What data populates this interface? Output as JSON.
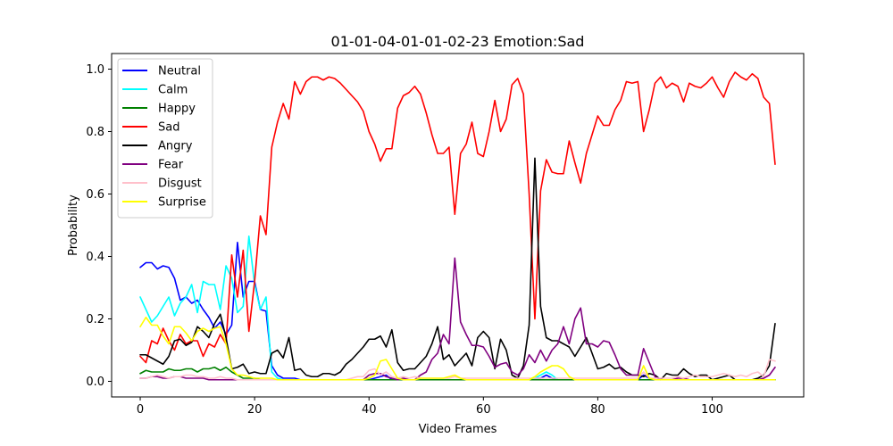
{
  "chart_data": {
    "type": "line",
    "title": "01-01-04-01-01-02-23 Emotion:Sad",
    "xlabel": "Video Frames",
    "ylabel": "Probability",
    "xlim": [
      -5,
      116
    ],
    "ylim": [
      -0.05,
      1.05
    ],
    "xticks": [
      0,
      20,
      40,
      60,
      80,
      100
    ],
    "yticks": [
      0.0,
      0.2,
      0.4,
      0.6,
      0.8,
      1.0
    ],
    "yticklabels": [
      "0.0",
      "0.2",
      "0.4",
      "0.6",
      "0.8",
      "1.0"
    ],
    "grid": false,
    "legend_position": "upper-left",
    "series": [
      {
        "name": "Neutral",
        "color": "#0000ff",
        "values": [
          0.365,
          0.38,
          0.38,
          0.36,
          0.37,
          0.365,
          0.33,
          0.26,
          0.27,
          0.25,
          0.26,
          0.23,
          0.205,
          0.17,
          0.19,
          0.15,
          0.18,
          0.445,
          0.27,
          0.32,
          0.32,
          0.23,
          0.225,
          0.05,
          0.02,
          0.01,
          0.01,
          0.01,
          0.005,
          0.005,
          0.005,
          0.005,
          0.005,
          0.005,
          0.005,
          0.005,
          0.005,
          0.005,
          0.005,
          0.005,
          0.005,
          0.01,
          0.015,
          0.02,
          0.005,
          0.005,
          0.005,
          0.005,
          0.005,
          0.005,
          0.005,
          0.005,
          0.005,
          0.005,
          0.005,
          0.005,
          0.005,
          0.005,
          0.005,
          0.005,
          0.005,
          0.005,
          0.005,
          0.005,
          0.005,
          0.005,
          0.005,
          0.005,
          0.005,
          0.01,
          0.01,
          0.02,
          0.01,
          0.005,
          0.005,
          0.005,
          0.005,
          0.005,
          0.005,
          0.005,
          0.005,
          0.005,
          0.005,
          0.005,
          0.005,
          0.005,
          0.005,
          0.005,
          0.02,
          0.01,
          0.005,
          0.005,
          0.005,
          0.005,
          0.005,
          0.005,
          0.005,
          0.005,
          0.005,
          0.005,
          0.005,
          0.005,
          0.005,
          0.005,
          0.005,
          0.005,
          0.005,
          0.005,
          0.005,
          0.005,
          0.005,
          0.005
        ]
      },
      {
        "name": "Calm",
        "color": "#00ffff",
        "values": [
          0.27,
          0.23,
          0.19,
          0.21,
          0.24,
          0.27,
          0.21,
          0.25,
          0.27,
          0.31,
          0.22,
          0.32,
          0.31,
          0.31,
          0.23,
          0.37,
          0.33,
          0.22,
          0.24,
          0.465,
          0.31,
          0.23,
          0.27,
          0.03,
          0.01,
          0.005,
          0.005,
          0.005,
          0.005,
          0.005,
          0.005,
          0.005,
          0.005,
          0.005,
          0.005,
          0.005,
          0.005,
          0.005,
          0.005,
          0.005,
          0.005,
          0.005,
          0.005,
          0.005,
          0.005,
          0.005,
          0.005,
          0.005,
          0.005,
          0.005,
          0.005,
          0.005,
          0.005,
          0.005,
          0.005,
          0.005,
          0.005,
          0.005,
          0.005,
          0.005,
          0.005,
          0.005,
          0.005,
          0.005,
          0.005,
          0.005,
          0.005,
          0.005,
          0.005,
          0.01,
          0.02,
          0.03,
          0.02,
          0.005,
          0.005,
          0.005,
          0.005,
          0.005,
          0.005,
          0.005,
          0.005,
          0.005,
          0.005,
          0.005,
          0.005,
          0.005,
          0.005,
          0.005,
          0.005,
          0.005,
          0.005,
          0.005,
          0.005,
          0.005,
          0.005,
          0.005,
          0.005,
          0.005,
          0.005,
          0.005,
          0.005,
          0.005,
          0.005,
          0.005,
          0.005,
          0.005,
          0.005,
          0.005,
          0.005,
          0.005,
          0.005,
          0.005
        ]
      },
      {
        "name": "Happy",
        "color": "#008000",
        "values": [
          0.025,
          0.035,
          0.03,
          0.03,
          0.03,
          0.04,
          0.035,
          0.035,
          0.04,
          0.04,
          0.03,
          0.04,
          0.04,
          0.045,
          0.035,
          0.045,
          0.03,
          0.02,
          0.01,
          0.01,
          0.01,
          0.005,
          0.005,
          0.005,
          0.005,
          0.005,
          0.005,
          0.005,
          0.005,
          0.005,
          0.005,
          0.005,
          0.005,
          0.005,
          0.005,
          0.005,
          0.005,
          0.005,
          0.005,
          0.005,
          0.005,
          0.005,
          0.005,
          0.005,
          0.005,
          0.005,
          0.005,
          0.005,
          0.005,
          0.005,
          0.005,
          0.005,
          0.005,
          0.005,
          0.005,
          0.005,
          0.005,
          0.005,
          0.005,
          0.005,
          0.005,
          0.005,
          0.005,
          0.005,
          0.005,
          0.005,
          0.005,
          0.005,
          0.005,
          0.005,
          0.005,
          0.005,
          0.005,
          0.005,
          0.005,
          0.005,
          0.005,
          0.005,
          0.005,
          0.005,
          0.005,
          0.005,
          0.005,
          0.005,
          0.005,
          0.005,
          0.005,
          0.005,
          0.005,
          0.005,
          0.005,
          0.005,
          0.005,
          0.005,
          0.005,
          0.005,
          0.005,
          0.005,
          0.005,
          0.005,
          0.005,
          0.005,
          0.005,
          0.005,
          0.005,
          0.005,
          0.005,
          0.005,
          0.005,
          0.005,
          0.005,
          0.005
        ]
      },
      {
        "name": "Sad",
        "color": "#ff0000",
        "values": [
          0.08,
          0.06,
          0.13,
          0.12,
          0.17,
          0.13,
          0.1,
          0.15,
          0.12,
          0.13,
          0.13,
          0.08,
          0.12,
          0.11,
          0.15,
          0.12,
          0.405,
          0.27,
          0.42,
          0.16,
          0.32,
          0.53,
          0.47,
          0.75,
          0.83,
          0.89,
          0.84,
          0.96,
          0.92,
          0.96,
          0.975,
          0.975,
          0.965,
          0.975,
          0.97,
          0.955,
          0.935,
          0.915,
          0.895,
          0.865,
          0.8,
          0.76,
          0.705,
          0.745,
          0.745,
          0.875,
          0.915,
          0.925,
          0.945,
          0.92,
          0.86,
          0.79,
          0.73,
          0.73,
          0.75,
          0.535,
          0.73,
          0.76,
          0.83,
          0.73,
          0.72,
          0.8,
          0.9,
          0.8,
          0.84,
          0.95,
          0.97,
          0.92,
          0.6,
          0.2,
          0.61,
          0.71,
          0.67,
          0.665,
          0.665,
          0.77,
          0.7,
          0.635,
          0.73,
          0.79,
          0.85,
          0.82,
          0.82,
          0.87,
          0.9,
          0.96,
          0.955,
          0.96,
          0.8,
          0.87,
          0.955,
          0.975,
          0.94,
          0.955,
          0.945,
          0.895,
          0.955,
          0.945,
          0.94,
          0.955,
          0.975,
          0.94,
          0.91,
          0.96,
          0.99,
          0.975,
          0.965,
          0.985,
          0.97,
          0.91,
          0.89,
          0.695
        ]
      },
      {
        "name": "Angry",
        "color": "#000000",
        "values": [
          0.085,
          0.085,
          0.075,
          0.065,
          0.055,
          0.08,
          0.13,
          0.135,
          0.115,
          0.125,
          0.175,
          0.16,
          0.14,
          0.185,
          0.215,
          0.14,
          0.04,
          0.045,
          0.055,
          0.025,
          0.03,
          0.025,
          0.025,
          0.09,
          0.1,
          0.075,
          0.14,
          0.035,
          0.04,
          0.02,
          0.015,
          0.015,
          0.025,
          0.025,
          0.02,
          0.03,
          0.055,
          0.07,
          0.09,
          0.11,
          0.135,
          0.135,
          0.145,
          0.11,
          0.165,
          0.06,
          0.035,
          0.04,
          0.04,
          0.06,
          0.08,
          0.12,
          0.175,
          0.07,
          0.085,
          0.05,
          0.07,
          0.09,
          0.05,
          0.14,
          0.16,
          0.14,
          0.04,
          0.135,
          0.1,
          0.02,
          0.01,
          0.05,
          0.18,
          0.715,
          0.24,
          0.14,
          0.13,
          0.13,
          0.12,
          0.11,
          0.08,
          0.11,
          0.14,
          0.09,
          0.04,
          0.045,
          0.055,
          0.04,
          0.045,
          0.03,
          0.02,
          0.02,
          0.015,
          0.025,
          0.02,
          0.005,
          0.025,
          0.02,
          0.02,
          0.04,
          0.025,
          0.015,
          0.02,
          0.02,
          0.005,
          0.01,
          0.015,
          0.02,
          0.005,
          0.005,
          0.005,
          0.005,
          0.01,
          0.02,
          0.05,
          0.185
        ]
      },
      {
        "name": "Fear",
        "color": "#800080",
        "values": [
          0.01,
          0.01,
          0.015,
          0.015,
          0.01,
          0.01,
          0.015,
          0.015,
          0.01,
          0.01,
          0.01,
          0.01,
          0.005,
          0.005,
          0.005,
          0.005,
          0.005,
          0.005,
          0.005,
          0.005,
          0.005,
          0.005,
          0.005,
          0.005,
          0.005,
          0.005,
          0.005,
          0.005,
          0.005,
          0.005,
          0.005,
          0.005,
          0.005,
          0.005,
          0.005,
          0.005,
          0.005,
          0.005,
          0.005,
          0.005,
          0.02,
          0.025,
          0.025,
          0.015,
          0.01,
          0.005,
          0.01,
          0.005,
          0.005,
          0.02,
          0.03,
          0.07,
          0.09,
          0.15,
          0.12,
          0.395,
          0.19,
          0.15,
          0.115,
          0.115,
          0.11,
          0.08,
          0.045,
          0.055,
          0.06,
          0.03,
          0.02,
          0.04,
          0.085,
          0.06,
          0.1,
          0.065,
          0.1,
          0.12,
          0.175,
          0.12,
          0.2,
          0.235,
          0.12,
          0.12,
          0.11,
          0.13,
          0.125,
          0.085,
          0.04,
          0.02,
          0.02,
          0.02,
          0.105,
          0.06,
          0.015,
          0.005,
          0.005,
          0.005,
          0.01,
          0.01,
          0.005,
          0.005,
          0.005,
          0.005,
          0.005,
          0.005,
          0.005,
          0.005,
          0.005,
          0.005,
          0.005,
          0.005,
          0.005,
          0.01,
          0.02,
          0.045
        ]
      },
      {
        "name": "Disgust",
        "color": "#ffc0cb",
        "values": [
          0.01,
          0.01,
          0.015,
          0.02,
          0.015,
          0.01,
          0.015,
          0.015,
          0.02,
          0.02,
          0.015,
          0.015,
          0.01,
          0.01,
          0.015,
          0.01,
          0.01,
          0.005,
          0.005,
          0.005,
          0.005,
          0.005,
          0.005,
          0.005,
          0.005,
          0.005,
          0.005,
          0.005,
          0.005,
          0.005,
          0.005,
          0.005,
          0.005,
          0.005,
          0.005,
          0.005,
          0.005,
          0.01,
          0.015,
          0.015,
          0.035,
          0.04,
          0.02,
          0.03,
          0.015,
          0.01,
          0.015,
          0.01,
          0.015,
          0.01,
          0.01,
          0.01,
          0.01,
          0.01,
          0.01,
          0.015,
          0.01,
          0.01,
          0.01,
          0.01,
          0.01,
          0.01,
          0.01,
          0.01,
          0.01,
          0.01,
          0.01,
          0.01,
          0.01,
          0.01,
          0.01,
          0.01,
          0.01,
          0.01,
          0.01,
          0.01,
          0.01,
          0.01,
          0.01,
          0.01,
          0.01,
          0.01,
          0.01,
          0.01,
          0.01,
          0.01,
          0.01,
          0.01,
          0.03,
          0.01,
          0.01,
          0.01,
          0.01,
          0.01,
          0.015,
          0.01,
          0.015,
          0.02,
          0.015,
          0.015,
          0.015,
          0.02,
          0.025,
          0.02,
          0.015,
          0.02,
          0.015,
          0.025,
          0.03,
          0.015,
          0.07,
          0.065
        ]
      },
      {
        "name": "Surprise",
        "color": "#ffff00",
        "values": [
          0.175,
          0.205,
          0.18,
          0.18,
          0.145,
          0.12,
          0.175,
          0.175,
          0.155,
          0.13,
          0.16,
          0.17,
          0.16,
          0.17,
          0.175,
          0.12,
          0.04,
          0.02,
          0.02,
          0.015,
          0.01,
          0.01,
          0.01,
          0.01,
          0.005,
          0.005,
          0.005,
          0.005,
          0.005,
          0.005,
          0.005,
          0.005,
          0.005,
          0.005,
          0.005,
          0.005,
          0.005,
          0.005,
          0.005,
          0.005,
          0.01,
          0.02,
          0.065,
          0.07,
          0.04,
          0.01,
          0.005,
          0.005,
          0.005,
          0.01,
          0.01,
          0.01,
          0.01,
          0.01,
          0.015,
          0.02,
          0.01,
          0.005,
          0.005,
          0.005,
          0.005,
          0.005,
          0.005,
          0.005,
          0.005,
          0.005,
          0.005,
          0.005,
          0.005,
          0.015,
          0.03,
          0.04,
          0.05,
          0.05,
          0.04,
          0.015,
          0.005,
          0.005,
          0.005,
          0.005,
          0.005,
          0.005,
          0.005,
          0.005,
          0.005,
          0.005,
          0.005,
          0.005,
          0.05,
          0.01,
          0.005,
          0.005,
          0.005,
          0.005,
          0.005,
          0.005,
          0.005,
          0.005,
          0.005,
          0.005,
          0.005,
          0.005,
          0.005,
          0.005,
          0.005,
          0.005,
          0.005,
          0.005,
          0.005,
          0.005,
          0.005,
          0.005
        ]
      }
    ]
  }
}
